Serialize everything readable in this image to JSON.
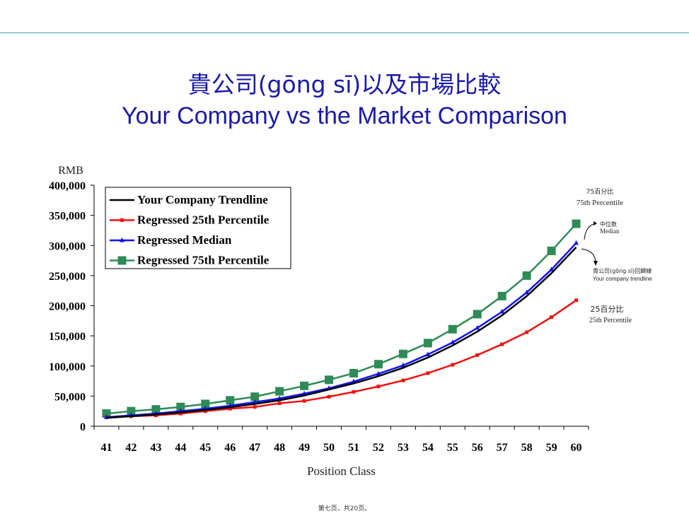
{
  "page": {
    "title_cn": "貴公司(gōng sī)以及市場比較",
    "title_en": "Your Company vs the Market Comparison",
    "footer": "第七页，共20页。"
  },
  "chart_data": {
    "type": "line",
    "ylabel": "RMB",
    "xlabel": "Position Class",
    "ylim": [
      0,
      400000
    ],
    "yticks": [
      0,
      50000,
      100000,
      150000,
      200000,
      250000,
      300000,
      350000,
      400000
    ],
    "ytick_labels": [
      "0",
      "50,000",
      "100,000",
      "150,000",
      "200,000",
      "250,000",
      "300,000",
      "350,000",
      "400,000"
    ],
    "x": [
      41,
      42,
      43,
      44,
      45,
      46,
      47,
      48,
      49,
      50,
      51,
      52,
      53,
      54,
      55,
      56,
      57,
      58,
      59,
      60
    ],
    "legend_placement": "top-left",
    "series": [
      {
        "name": "Your Company Trendline",
        "color": "#000000",
        "marker": "none",
        "values": [
          14000,
          16500,
          19500,
          23000,
          27000,
          31500,
          37000,
          43000,
          51000,
          61000,
          71000,
          83000,
          97000,
          114000,
          134000,
          157000,
          184000,
          216000,
          254000,
          297000
        ]
      },
      {
        "name": "Regressed 25th Percentile",
        "color": "#ee1111",
        "marker": "square-small",
        "values": [
          15000,
          16500,
          18000,
          21000,
          25000,
          29000,
          32000,
          38000,
          42000,
          49000,
          57000,
          66000,
          76000,
          88000,
          102000,
          118000,
          136000,
          156000,
          181000,
          209000
        ]
      },
      {
        "name": "Regressed Median",
        "color": "#1111ee",
        "marker": "triangle",
        "values": [
          15000,
          18000,
          21000,
          25000,
          29000,
          34000,
          40000,
          46000,
          54000,
          63000,
          74000,
          87000,
          101000,
          119000,
          139000,
          163000,
          190000,
          222000,
          260000,
          304000
        ]
      },
      {
        "name": "Regressed 75th Percentile",
        "color": "#2e8b57",
        "marker": "square-large",
        "values": [
          21000,
          25000,
          28000,
          32000,
          37000,
          43000,
          49000,
          58000,
          67000,
          77000,
          88000,
          103000,
          120000,
          138000,
          161000,
          186000,
          216000,
          250000,
          291000,
          336000
        ]
      }
    ],
    "annotations": [
      {
        "id": "p75",
        "line1": "75百分比",
        "line2": "75th Percentile"
      },
      {
        "id": "median",
        "line1": "中位数",
        "line2": "Median"
      },
      {
        "id": "trend",
        "line1": "貴公司(gōng sī)回歸線",
        "line2": "Your company trendline"
      },
      {
        "id": "p25",
        "line1": "25百分比",
        "line2": "25th Percentile"
      }
    ]
  }
}
